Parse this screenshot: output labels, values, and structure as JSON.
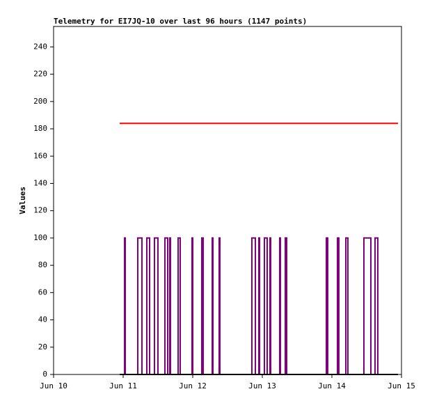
{
  "chart_data": {
    "type": "line",
    "title": "Telemetry for EI7JQ-10 over last 96 hours (1147 points)",
    "y_label": "Values",
    "xlim": [
      10,
      15
    ],
    "xticks": [
      {
        "value": 10,
        "label": "Jun 10"
      },
      {
        "value": 11,
        "label": "Jun 11"
      },
      {
        "value": 12,
        "label": "Jun 12"
      },
      {
        "value": 13,
        "label": "Jun 13"
      },
      {
        "value": 14,
        "label": "Jun 14"
      },
      {
        "value": 15,
        "label": "Jun 15"
      }
    ],
    "ylim": [
      0,
      255
    ],
    "yticks": [
      0,
      20,
      40,
      60,
      80,
      100,
      120,
      140,
      160,
      180,
      200,
      220,
      240
    ],
    "grid": false,
    "series": [
      {
        "color": "#ff0000",
        "x": [
          10.95,
          14.95
        ],
        "values": [
          184,
          184
        ]
      },
      {
        "color": "#800080",
        "x": [
          10.95,
          11.02,
          11.02,
          11.03,
          11.03,
          11.21,
          11.21,
          11.27,
          11.27,
          11.34,
          11.34,
          11.38,
          11.38,
          11.45,
          11.45,
          11.5,
          11.5,
          11.6,
          11.6,
          11.64,
          11.64,
          11.67,
          11.67,
          11.68,
          11.68,
          11.79,
          11.79,
          11.82,
          11.82,
          11.99,
          11.99,
          12.0,
          12.0,
          12.13,
          12.13,
          12.15,
          12.15,
          12.28,
          12.28,
          12.29,
          12.29,
          12.38,
          12.38,
          12.39,
          12.39,
          12.85,
          12.85,
          12.9,
          12.9,
          12.95,
          12.95,
          12.96,
          12.96,
          13.03,
          13.03,
          13.07,
          13.07,
          13.11,
          13.11,
          13.12,
          13.12,
          13.25,
          13.25,
          13.26,
          13.26,
          13.33,
          13.33,
          13.35,
          13.35,
          13.92,
          13.92,
          13.94,
          13.94,
          14.08,
          14.08,
          14.1,
          14.1,
          14.2,
          14.2,
          14.23,
          14.23,
          14.46,
          14.46,
          14.56,
          14.56,
          14.62,
          14.62,
          14.66,
          14.66,
          14.95
        ],
        "values": [
          0,
          0,
          100,
          100,
          0,
          0,
          100,
          100,
          0,
          0,
          100,
          100,
          0,
          0,
          100,
          100,
          0,
          0,
          100,
          100,
          0,
          0,
          100,
          100,
          0,
          0,
          100,
          100,
          0,
          0,
          100,
          100,
          0,
          0,
          100,
          100,
          0,
          0,
          100,
          100,
          0,
          0,
          100,
          100,
          0,
          0,
          100,
          100,
          0,
          0,
          100,
          100,
          0,
          0,
          100,
          100,
          0,
          0,
          100,
          100,
          0,
          0,
          100,
          100,
          0,
          0,
          100,
          100,
          0,
          0,
          100,
          100,
          0,
          0,
          100,
          100,
          0,
          0,
          100,
          100,
          0,
          0,
          100,
          100,
          0,
          0,
          100,
          100,
          0,
          0
        ]
      },
      {
        "color": "#000000",
        "x": [
          10.95,
          14.95
        ],
        "values": [
          0,
          0
        ]
      }
    ]
  }
}
